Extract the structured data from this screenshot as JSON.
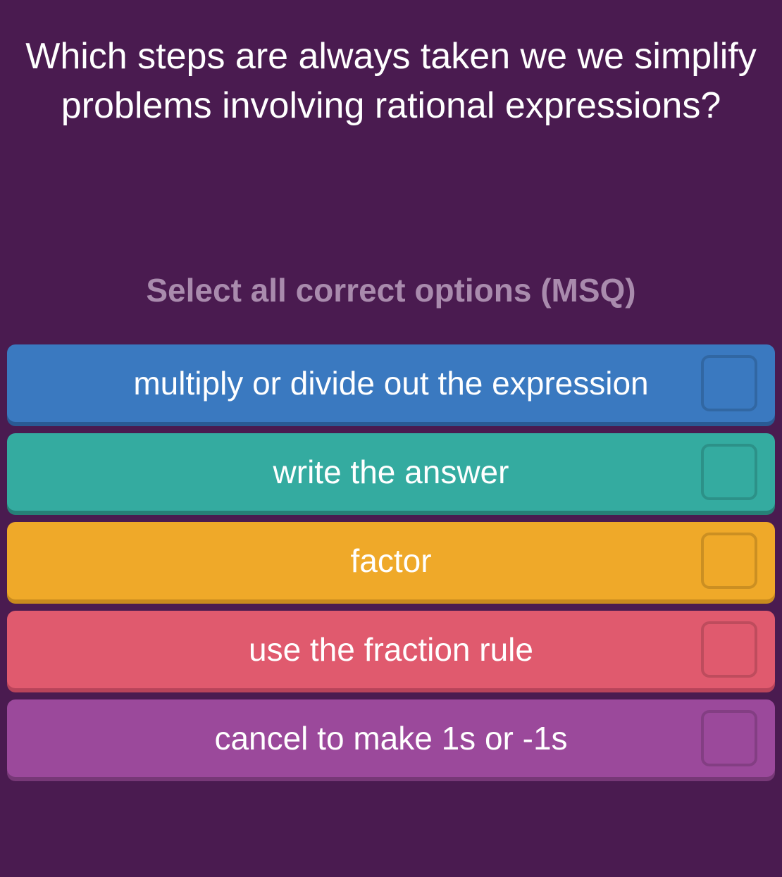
{
  "question_text": "Which steps are always taken we we simplify problems involving rational expressions?",
  "instruction_text": "Select all correct options (MSQ)",
  "background_color": "#4a1b50",
  "instruction_color": "#a98bad",
  "question_color": "#ffffff",
  "question_fontsize": 52,
  "instruction_fontsize": 46,
  "option_fontsize": 46,
  "option_text_color": "#ffffff",
  "options": [
    {
      "label": "multiply or divide out the expression",
      "bg_color": "#3a79c0",
      "shadow_color": "#2a5a94"
    },
    {
      "label": "write the answer",
      "bg_color": "#34aba0",
      "shadow_color": "#268077"
    },
    {
      "label": "factor",
      "bg_color": "#efa929",
      "shadow_color": "#c88a1e"
    },
    {
      "label": "use the fraction rule",
      "bg_color": "#e05a6e",
      "shadow_color": "#b8445a"
    },
    {
      "label": "cancel to make 1s or -1s",
      "bg_color": "#9b499b",
      "shadow_color": "#773877"
    }
  ]
}
